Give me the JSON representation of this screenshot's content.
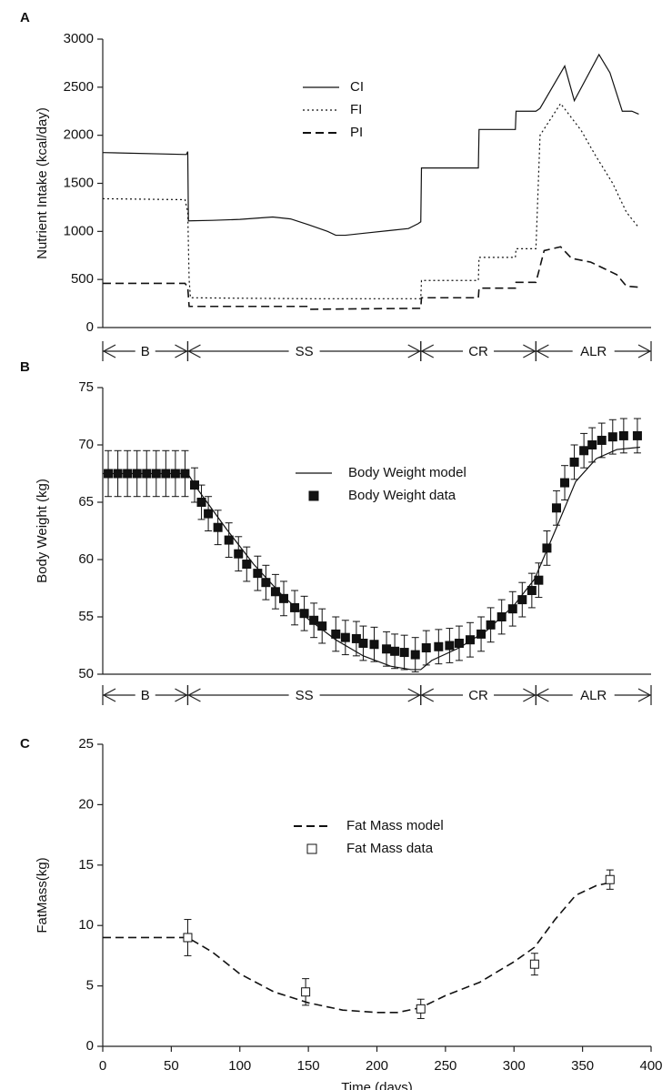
{
  "chart_data": [
    {
      "type": "line",
      "panel_label": "A",
      "y_label": "Nutrient Intake (kcal/day)",
      "xlim": [
        0,
        400
      ],
      "ylim": [
        0,
        3000
      ],
      "yticks": [
        0,
        500,
        1000,
        1500,
        2000,
        2500,
        3000
      ],
      "phases": [
        {
          "label": "B",
          "start": 0,
          "end": 62
        },
        {
          "label": "SS",
          "start": 62,
          "end": 232
        },
        {
          "label": "CR",
          "start": 232,
          "end": 316
        },
        {
          "label": "ALR",
          "start": 316,
          "end": 400
        }
      ],
      "series": [
        {
          "name": "CI",
          "color": "#111111",
          "mark": "line",
          "dash": "solid",
          "x": [
            0,
            61,
            62,
            62.5,
            80,
            100,
            124,
            137,
            150,
            164,
            170,
            177,
            190,
            210,
            223,
            230,
            232,
            232.5,
            274,
            274.5,
            301,
            301.5,
            316,
            319,
            328,
            337,
            344,
            362,
            370,
            379,
            386,
            391
          ],
          "values": [
            1820,
            1800,
            1830,
            1110,
            1115,
            1125,
            1150,
            1130,
            1070,
            1000,
            960,
            960,
            980,
            1010,
            1030,
            1080,
            1100,
            1660,
            1660,
            2060,
            2060,
            2250,
            2250,
            2280,
            2500,
            2720,
            2360,
            2840,
            2650,
            2250,
            2250,
            2220
          ]
        },
        {
          "name": "FI",
          "color": "#111111",
          "mark": "line",
          "dash": "dotted",
          "x": [
            0,
            60,
            62,
            63,
            64,
            100,
            150,
            232,
            232.5,
            274,
            274.5,
            301,
            301.5,
            316,
            319,
            334,
            349,
            359,
            372,
            382,
            391
          ],
          "values": [
            1340,
            1330,
            1200,
            500,
            310,
            305,
            300,
            300,
            490,
            490,
            730,
            730,
            820,
            820,
            2000,
            2330,
            2050,
            1800,
            1500,
            1200,
            1040
          ]
        },
        {
          "name": "PI",
          "color": "#111111",
          "mark": "line",
          "dash": "dashed",
          "x": [
            0,
            60,
            62,
            63,
            150,
            151,
            232,
            232.5,
            274,
            274.5,
            301,
            301.5,
            316,
            322,
            334,
            342,
            356,
            375,
            382,
            391
          ],
          "values": [
            460,
            460,
            420,
            220,
            220,
            190,
            200,
            310,
            310,
            410,
            410,
            470,
            470,
            800,
            840,
            720,
            680,
            550,
            430,
            420
          ]
        }
      ]
    },
    {
      "type": "line",
      "panel_label": "B",
      "y_label": "Body Weight (kg)",
      "xlim": [
        0,
        400
      ],
      "ylim": [
        50,
        75
      ],
      "yticks": [
        50,
        55,
        60,
        65,
        70,
        75
      ],
      "phases": [
        {
          "label": "B",
          "start": 0,
          "end": 62
        },
        {
          "label": "SS",
          "start": 62,
          "end": 232
        },
        {
          "label": "CR",
          "start": 232,
          "end": 316
        },
        {
          "label": "ALR",
          "start": 316,
          "end": 400
        }
      ],
      "series": [
        {
          "name": "Body Weight model",
          "color": "#111111",
          "mark": "line",
          "dash": "solid",
          "x": [
            0,
            62,
            70,
            90,
            110,
            130,
            150,
            170,
            190,
            210,
            225,
            232,
            240,
            260,
            280,
            300,
            315,
            330,
            345,
            360,
            375,
            392
          ],
          "values": [
            67.5,
            67.5,
            66,
            62.7,
            59.6,
            57,
            54.8,
            53,
            51.6,
            50.7,
            50.4,
            50.4,
            51.2,
            52.3,
            53.8,
            56,
            58.3,
            62.5,
            66.8,
            68.8,
            69.6,
            69.8
          ]
        },
        {
          "name": "Body Weight data",
          "color": "#111111",
          "mark": "points",
          "marker": "filled-square",
          "x": [
            4,
            11,
            18,
            25,
            32,
            39,
            46,
            53,
            60,
            67,
            72,
            77,
            84,
            92,
            99,
            105,
            113,
            119,
            126,
            132,
            140,
            147,
            154,
            160,
            170,
            177,
            185,
            190,
            198,
            207,
            213,
            220,
            228,
            236,
            245,
            253,
            260,
            268,
            276,
            283,
            291,
            299,
            306,
            313,
            318,
            324,
            331,
            337,
            344,
            351,
            357,
            364,
            372,
            380,
            390
          ],
          "values": [
            67.5,
            67.5,
            67.5,
            67.5,
            67.5,
            67.5,
            67.5,
            67.5,
            67.5,
            66.5,
            65.0,
            64.0,
            62.8,
            61.7,
            60.5,
            59.6,
            58.8,
            58.0,
            57.2,
            56.6,
            55.8,
            55.3,
            54.7,
            54.2,
            53.5,
            53.2,
            53.1,
            52.7,
            52.6,
            52.2,
            52.0,
            51.9,
            51.7,
            52.3,
            52.4,
            52.5,
            52.7,
            53.0,
            53.5,
            54.3,
            55.0,
            55.7,
            56.5,
            57.3,
            58.2,
            61.0,
            64.5,
            66.7,
            68.5,
            69.5,
            70.0,
            70.4,
            70.7,
            70.8,
            70.8
          ],
          "errors": [
            2,
            2,
            2,
            2,
            2,
            2,
            2,
            2,
            2,
            1.5,
            1.5,
            1.5,
            1.5,
            1.5,
            1.5,
            1.5,
            1.5,
            1.5,
            1.5,
            1.5,
            1.5,
            1.5,
            1.5,
            1.5,
            1.5,
            1.5,
            1.5,
            1.5,
            1.5,
            1.5,
            1.5,
            1.5,
            1.5,
            1.5,
            1.5,
            1.5,
            1.5,
            1.5,
            1.5,
            1.5,
            1.5,
            1.5,
            1.5,
            1.5,
            1.5,
            1.5,
            1.5,
            1.5,
            1.5,
            1.5,
            1.5,
            1.5,
            1.5,
            1.5,
            1.5
          ]
        }
      ]
    },
    {
      "type": "line",
      "panel_label": "C",
      "y_label": "FatMass(kg)",
      "x_label": "Time (days)",
      "xlim": [
        0,
        400
      ],
      "xticks": [
        0,
        50,
        100,
        150,
        200,
        250,
        300,
        350,
        400
      ],
      "ylim": [
        0,
        25
      ],
      "yticks": [
        0,
        5,
        10,
        15,
        20,
        25
      ],
      "series": [
        {
          "name": "Fat Mass model",
          "color": "#111111",
          "mark": "line",
          "dash": "dashed",
          "x": [
            0,
            62,
            80,
            100,
            125,
            150,
            175,
            200,
            215,
            232,
            250,
            275,
            300,
            315,
            330,
            345,
            360,
            372
          ],
          "values": [
            9,
            9,
            7.8,
            6,
            4.5,
            3.6,
            3,
            2.8,
            2.8,
            3.2,
            4.2,
            5.3,
            7,
            8.2,
            10.5,
            12.5,
            13.3,
            13.6
          ]
        },
        {
          "name": "Fat Mass data",
          "color": "#111111",
          "mark": "points",
          "marker": "open-square",
          "x": [
            62,
            148,
            232,
            315,
            370
          ],
          "values": [
            9.0,
            4.5,
            3.1,
            6.8,
            13.8
          ],
          "errors": [
            1.5,
            1.1,
            0.8,
            0.9,
            0.8
          ]
        }
      ]
    }
  ]
}
